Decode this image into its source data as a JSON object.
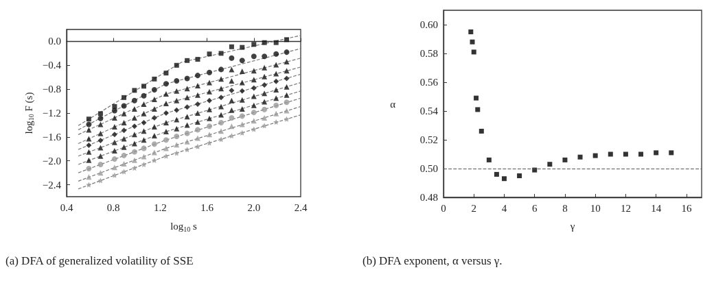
{
  "chart_data": [
    {
      "type": "scatter",
      "xlabel": "log$_{10}$ s",
      "ylabel": "log$_{10}$ F (s)",
      "annotations": [
        "(a) DFA of generalized volatility of SSE"
      ],
      "xlim": [
        0.4,
        2.4
      ],
      "xticks": [
        0.4,
        0.8,
        1.2,
        1.6,
        {
          "value": 2,
          "label": "2.0"
        },
        2.4
      ],
      "ylim": [
        -2.6,
        0.2
      ],
      "yticks": [
        {
          "value": 0,
          "label": "0.0"
        },
        {
          "value": -0.4,
          "label": "−0.4"
        },
        {
          "value": -0.8,
          "label": "−0.8"
        },
        {
          "value": -1.2,
          "label": "−1.2"
        },
        {
          "value": -1.6,
          "label": "−1.6"
        },
        {
          "value": -2,
          "label": "−2.0"
        },
        {
          "value": -2.4,
          "label": "−2.4"
        }
      ],
      "x": [
        0.59,
        0.69,
        0.81,
        0.89,
        0.98,
        1.06,
        1.15,
        1.25,
        1.34,
        1.43,
        1.52,
        1.62,
        1.72,
        1.81,
        1.9,
        2.0,
        2.09,
        2.19,
        2.28
      ],
      "series": [
        {
          "color": "#111111",
          "marker": "square",
          "values": [
            -1.3,
            -1.21,
            -1.09,
            -0.94,
            -0.82,
            -0.75,
            -0.63,
            -0.53,
            -0.4,
            -0.32,
            -0.3,
            -0.21,
            -0.2,
            -0.09,
            -0.1,
            -0.05,
            -0.02,
            -0.02,
            0.03
          ]
        },
        {
          "color": "#111111",
          "marker": "circle",
          "values": [
            -1.39,
            -1.29,
            -1.16,
            -1.08,
            -0.99,
            -0.91,
            -0.81,
            -0.71,
            -0.66,
            -0.62,
            -0.57,
            -0.52,
            -0.47,
            -0.28,
            -0.32,
            -0.25,
            -0.25,
            -0.21,
            -0.18
          ]
        },
        {
          "color": "#111111",
          "marker": "triangle",
          "values": [
            -1.48,
            -1.39,
            -1.28,
            -1.21,
            -1.13,
            -1.05,
            -0.97,
            -0.88,
            -0.83,
            -0.79,
            -0.74,
            -0.69,
            -0.63,
            -0.47,
            -0.5,
            -0.49,
            -0.44,
            -0.39,
            -0.34
          ]
        },
        {
          "color": "#111111",
          "marker": "triangle",
          "values": [
            -1.63,
            -1.54,
            -1.43,
            -1.36,
            -1.28,
            -1.21,
            -1.13,
            -1.04,
            -0.99,
            -0.94,
            -0.9,
            -0.84,
            -0.79,
            -0.66,
            -0.69,
            -0.64,
            -0.59,
            -0.54,
            -0.49
          ]
        },
        {
          "color": "#111111",
          "marker": "diamond",
          "values": [
            -1.74,
            -1.66,
            -1.56,
            -1.49,
            -1.42,
            -1.36,
            -1.28,
            -1.2,
            -1.15,
            -1.1,
            -1.05,
            -0.99,
            -0.94,
            -0.82,
            -0.83,
            -0.78,
            -0.73,
            -0.67,
            -0.62
          ]
        },
        {
          "color": "#111111",
          "marker": "triangle",
          "values": [
            -1.85,
            -1.78,
            -1.69,
            -1.63,
            -1.56,
            -1.5,
            -1.43,
            -1.36,
            -1.31,
            -1.26,
            -1.2,
            -1.14,
            -1.09,
            -0.99,
            -0.98,
            -0.92,
            -0.87,
            -0.81,
            -0.76
          ]
        },
        {
          "color": "#111111",
          "marker": "triangle",
          "values": [
            -1.99,
            -1.92,
            -1.83,
            -1.77,
            -1.71,
            -1.65,
            -1.58,
            -1.51,
            -1.46,
            -1.4,
            -1.35,
            -1.29,
            -1.23,
            -1.15,
            -1.13,
            -1.07,
            -1.01,
            -0.95,
            -0.9
          ]
        },
        {
          "color": "#999999",
          "marker": "circle",
          "values": [
            -2.13,
            -2.06,
            -1.97,
            -1.91,
            -1.85,
            -1.79,
            -1.72,
            -1.65,
            -1.59,
            -1.54,
            -1.48,
            -1.42,
            -1.36,
            -1.28,
            -1.25,
            -1.19,
            -1.14,
            -1.07,
            -1.02
          ]
        },
        {
          "color": "#999999",
          "marker": "triangle",
          "values": [
            -2.27,
            -2.2,
            -2.11,
            -2.05,
            -1.99,
            -1.93,
            -1.86,
            -1.79,
            -1.73,
            -1.68,
            -1.62,
            -1.56,
            -1.5,
            -1.42,
            -1.39,
            -1.33,
            -1.28,
            -1.21,
            -1.16
          ]
        },
        {
          "color": "#999999",
          "marker": "star",
          "values": [
            -2.4,
            -2.33,
            -2.24,
            -2.18,
            -2.12,
            -2.06,
            -1.99,
            -1.92,
            -1.87,
            -1.81,
            -1.76,
            -1.7,
            -1.64,
            -1.58,
            -1.53,
            -1.47,
            -1.41,
            -1.35,
            -1.3
          ]
        },
        {
          "type": "line",
          "color": "#777777",
          "line_style": "dashed",
          "x": [
            0.5,
            1.38,
            2.4
          ],
          "values": [
            -1.41,
            -0.35,
            0.1
          ]
        },
        {
          "type": "line",
          "color": "#777777",
          "line_style": "dashed",
          "x": [
            0.5,
            1.25,
            2.4
          ],
          "values": [
            -1.48,
            -0.71,
            -0.12
          ]
        },
        {
          "type": "line",
          "color": "#777777",
          "line_style": "dashed",
          "x": [
            0.5,
            1.25,
            2.4
          ],
          "values": [
            -1.56,
            -0.88,
            -0.28
          ]
        },
        {
          "type": "line",
          "color": "#777777",
          "line_style": "dashed",
          "x": [
            0.5,
            1.25,
            2.4
          ],
          "values": [
            -1.71,
            -1.04,
            -0.43
          ]
        },
        {
          "type": "line",
          "color": "#777777",
          "line_style": "dashed",
          "x": [
            0.5,
            1.25,
            2.4
          ],
          "values": [
            -1.81,
            -1.2,
            -0.55
          ]
        },
        {
          "type": "line",
          "color": "#777777",
          "line_style": "dashed",
          "x": [
            0.5,
            1.25,
            2.4
          ],
          "values": [
            -1.92,
            -1.36,
            -0.69
          ]
        },
        {
          "type": "line",
          "color": "#777777",
          "line_style": "dashed",
          "x": [
            0.5,
            1.25,
            2.4
          ],
          "values": [
            -2.06,
            -1.51,
            -0.83
          ]
        },
        {
          "type": "line",
          "color": "#777777",
          "line_style": "dashed",
          "x": [
            0.5,
            1.25,
            2.4
          ],
          "values": [
            -2.2,
            -1.65,
            -0.95
          ]
        },
        {
          "type": "line",
          "color": "#777777",
          "line_style": "dashed",
          "x": [
            0.5,
            1.25,
            2.4
          ],
          "values": [
            -2.34,
            -1.79,
            -1.09
          ]
        },
        {
          "type": "line",
          "color": "#777777",
          "line_style": "dashed",
          "x": [
            0.5,
            1.25,
            2.4
          ],
          "values": [
            -2.47,
            -1.92,
            -1.23
          ]
        }
      ]
    },
    {
      "type": "scatter",
      "xlabel": "γ",
      "ylabel": "α",
      "marker": "square",
      "annotations": [
        "(b) DFA exponent, α versus γ."
      ],
      "xlim": [
        0,
        17
      ],
      "xticks": [
        0,
        2,
        4,
        6,
        8,
        10,
        12,
        14,
        16
      ],
      "ylim": [
        0.48,
        0.61
      ],
      "yticks": [
        {
          "value": 0.48,
          "label": "0.48"
        },
        {
          "value": 0.5,
          "label": "0.50"
        },
        {
          "value": 0.52,
          "label": "0.52"
        },
        {
          "value": 0.54,
          "label": "0.54"
        },
        {
          "value": 0.56,
          "label": "0.56"
        },
        {
          "value": 0.58,
          "label": "0.58"
        },
        {
          "value": 0.6,
          "label": "0.60"
        }
      ],
      "x": [
        1.8,
        1.9,
        2.0,
        2.15,
        2.25,
        2.5,
        3,
        3.5,
        4,
        5,
        6,
        7,
        8,
        9,
        10,
        11,
        12,
        13,
        14,
        15
      ],
      "series": [
        {
          "color": "#000000",
          "values": [
            0.595,
            0.588,
            0.581,
            0.549,
            0.541,
            0.526,
            0.506,
            0.496,
            0.493,
            0.495,
            0.499,
            0.503,
            0.506,
            0.508,
            0.509,
            0.51,
            0.51,
            0.51,
            0.511,
            0.511
          ]
        }
      ],
      "ref_lines": [
        {
          "axis": "y",
          "value": 0.5,
          "color": "#555555",
          "line_style": "dashed"
        }
      ]
    }
  ]
}
